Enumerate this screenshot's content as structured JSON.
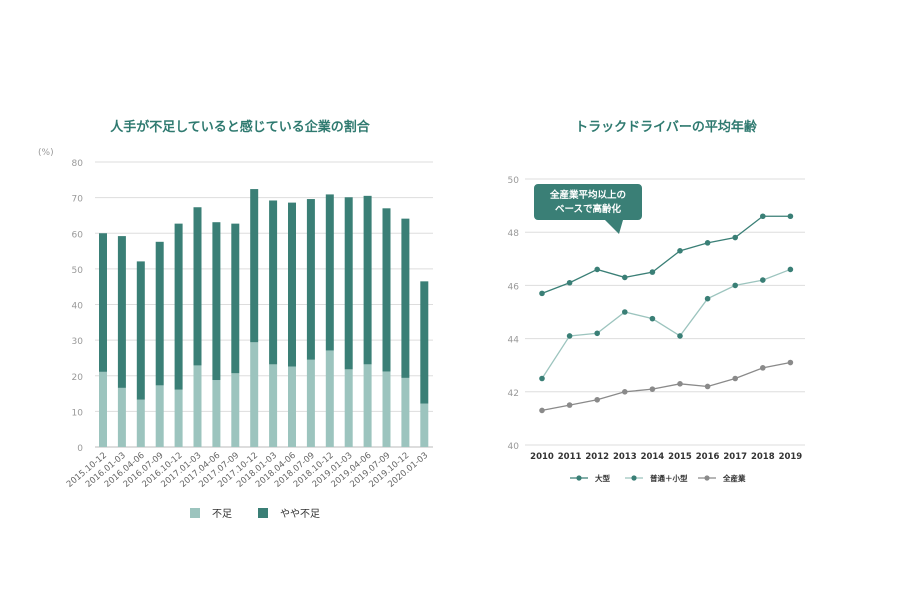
{
  "chart_data": [
    {
      "type": "bar",
      "stacked": true,
      "title": "人手が不足していると感じている企業の割合",
      "ylabel": "(%)",
      "ylim": [
        0,
        80
      ],
      "yticks": [
        0,
        10,
        20,
        30,
        40,
        50,
        60,
        70,
        80
      ],
      "grid": true,
      "legend_position": "bottom",
      "categories": [
        "2015.10-12",
        "2016.01-03",
        "2016.04-06",
        "2016.07-09",
        "2016.10-12",
        "2017.01-03",
        "2017.04-06",
        "2017.07-09",
        "2017.10-12",
        "2018.01-03",
        "2018.04-06",
        "2018.07-09",
        "2018.10-12",
        "2019.01-03",
        "2019.04-06",
        "2019.07-09",
        "2019.10-12",
        "2020.01-03"
      ],
      "series": [
        {
          "name": "不足",
          "color": "#9cc4be",
          "values": [
            21.1,
            16.6,
            13.3,
            17.3,
            16.1,
            22.9,
            18.8,
            20.7,
            29.4,
            23.2,
            22.6,
            24.5,
            27.1,
            21.8,
            23.2,
            21.2,
            19.4,
            12.2
          ]
        },
        {
          "name": "やや不足",
          "color": "#3a7f76",
          "values": [
            38.9,
            42.6,
            38.8,
            40.3,
            46.6,
            44.4,
            44.3,
            42.0,
            43.0,
            46.0,
            46.0,
            45.1,
            43.8,
            48.3,
            47.3,
            45.8,
            44.7,
            34.3
          ]
        }
      ]
    },
    {
      "type": "line",
      "title": "トラックドライバーの平均年齢",
      "ylim": [
        40,
        50
      ],
      "yticks": [
        40,
        42,
        44,
        46,
        48,
        50
      ],
      "grid": true,
      "legend_position": "bottom",
      "x": [
        2010,
        2011,
        2012,
        2013,
        2014,
        2015,
        2016,
        2017,
        2018,
        2019
      ],
      "series": [
        {
          "name": "大型",
          "color": "#3a7f76",
          "line_color": "#3a7f76",
          "values": [
            45.7,
            46.1,
            46.6,
            46.3,
            46.5,
            47.3,
            47.6,
            47.8,
            48.6,
            48.6
          ]
        },
        {
          "name": "普通＋小型",
          "color": "#3a7f76",
          "line_color": "#9cc4be",
          "values": [
            42.5,
            44.1,
            44.2,
            45.0,
            44.75,
            44.1,
            45.5,
            46.0,
            46.2,
            46.6
          ]
        },
        {
          "name": "全産業",
          "color": "#8a8a8a",
          "line_color": "#8a8a8a",
          "values": [
            41.3,
            41.5,
            41.7,
            42.0,
            42.1,
            42.3,
            42.2,
            42.5,
            42.9,
            43.1
          ]
        }
      ],
      "annotation": {
        "lines": [
          "全産業平均以上の",
          "ベースで高齢化"
        ],
        "color": "#3a7f76"
      }
    }
  ]
}
